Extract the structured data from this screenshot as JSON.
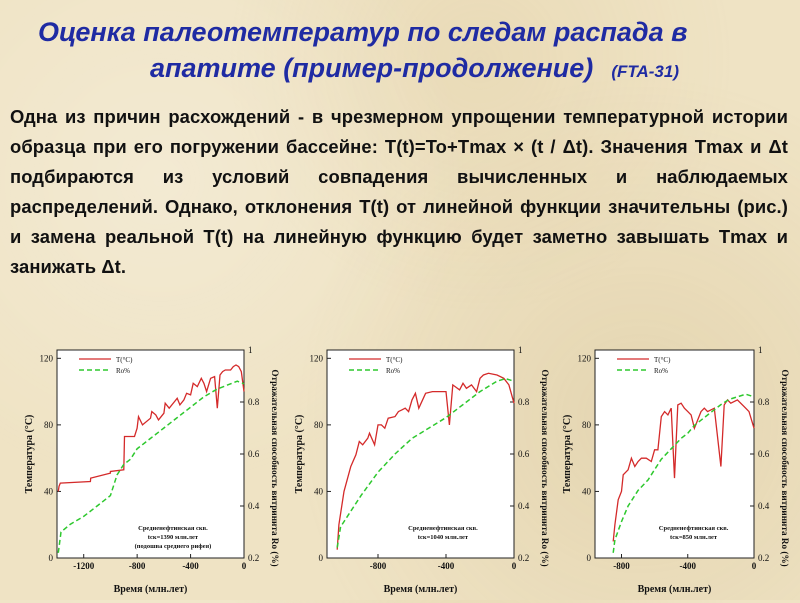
{
  "title": {
    "line1": "Оценка палеотемператур по следам распада в",
    "line2": "апатите (пример-продолжение)",
    "code": "(FTA-31)"
  },
  "paragraph": "Одна из причин расхождений - в чрезмерном упрощении температурной истории образца при его погружении бассейне: T(t)=To+Tmax × (t / Δt). Значения Tmax  и Δt подбираются из условий совпадения вычисленных и наблюдаемых распределений. Однако, отклонения T(t) от линейной функции значительны (рис.) и замена реальной T(t) на линейную функцию будет заметно завышать Tmax и занижать Δt.",
  "colors": {
    "title": "#1f2ba3",
    "temperature": "#d42a2a",
    "ro": "#2ec82e"
  },
  "chart_data": [
    {
      "type": "line",
      "xlabel": "Время (млн.лет)",
      "ylabel_left": "Температура (°C)",
      "ylabel_right": "Отражательная способность витринита Ro (%)",
      "xlim": [
        -1400,
        0
      ],
      "ylim_left": [
        0,
        125
      ],
      "ylim_right": [
        0.2,
        1.0
      ],
      "x_ticks": [
        "-1200",
        "-800",
        "-400",
        "0"
      ],
      "y_ticks_left": [
        "0",
        "40",
        "80",
        "120"
      ],
      "y_ticks_right": [
        "0.2",
        "0.4",
        "0.6",
        "0.8",
        "1"
      ],
      "legend": [
        "T(°C)",
        "Ro%"
      ],
      "annotation": [
        "Средненефтинская скв.",
        "tск=1390 млн.лет",
        "(подошва среднего рифея)"
      ],
      "series": [
        {
          "name": "T(°C)",
          "axis": "left",
          "x": [
            -1390,
            -1385,
            -1375,
            -1150,
            -1148,
            -1000,
            -1000,
            -900,
            -895,
            -820,
            -800,
            -790,
            -760,
            -700,
            -690,
            -660,
            -640,
            -600,
            -590,
            -560,
            -520,
            -500,
            -480,
            -450,
            -430,
            -400,
            -380,
            -350,
            -320,
            -300,
            -280,
            -250,
            -220,
            -200,
            -180,
            -160,
            -140,
            -100,
            -80,
            -60,
            -40,
            -20,
            0
          ],
          "y": [
            40,
            43,
            45,
            46,
            48,
            51,
            52,
            53,
            73,
            73,
            78,
            85,
            80,
            84,
            88,
            86,
            83,
            87,
            93,
            90,
            94,
            96,
            92,
            95,
            99,
            98,
            105,
            103,
            108,
            105,
            100,
            108,
            109,
            90,
            110,
            112,
            113,
            113,
            115,
            116,
            115,
            112,
            100
          ]
        },
        {
          "name": "Ro%",
          "axis": "right",
          "x": [
            -1390,
            -1370,
            -1300,
            -1200,
            -1100,
            -1000,
            -950,
            -900,
            -850,
            -800,
            -700,
            -600,
            -500,
            -400,
            -300,
            -200,
            -150,
            -100,
            -50,
            0
          ],
          "y": [
            0.22,
            0.3,
            0.33,
            0.36,
            0.4,
            0.44,
            0.52,
            0.56,
            0.58,
            0.62,
            0.66,
            0.7,
            0.74,
            0.78,
            0.82,
            0.85,
            0.86,
            0.87,
            0.88,
            0.87
          ]
        }
      ]
    },
    {
      "type": "line",
      "xlabel": "Время (млн.лет)",
      "ylabel_left": "Температура (°C)",
      "ylabel_right": "Отражательная способность витринита Ro (%)",
      "xlim": [
        -1100,
        0
      ],
      "ylim_left": [
        0,
        125
      ],
      "ylim_right": [
        0.2,
        1.0
      ],
      "x_ticks": [
        "-800",
        "-400",
        "0"
      ],
      "y_ticks_left": [
        "0",
        "40",
        "80",
        "120"
      ],
      "y_ticks_right": [
        "0.2",
        "0.4",
        "0.6",
        "0.8",
        "1"
      ],
      "legend": [
        "T(°C)",
        "Ro%"
      ],
      "annotation": [
        "Средненефтинская скв.",
        "tск=1040 млн.лет"
      ],
      "series": [
        {
          "name": "T(°C)",
          "axis": "left",
          "x": [
            -1040,
            -1030,
            -1000,
            -960,
            -930,
            -910,
            -890,
            -860,
            -850,
            -820,
            -800,
            -780,
            -760,
            -740,
            -700,
            -680,
            -660,
            -640,
            -620,
            -600,
            -580,
            -560,
            -520,
            -480,
            -400,
            -380,
            -360,
            -320,
            -300,
            -280,
            -250,
            -220,
            -200,
            -180,
            -150,
            -100,
            -60,
            -30,
            0
          ],
          "y": [
            5,
            20,
            40,
            55,
            62,
            70,
            68,
            72,
            75,
            68,
            80,
            80,
            78,
            84,
            85,
            88,
            89,
            90,
            88,
            95,
            99,
            90,
            99,
            100,
            100,
            80,
            104,
            101,
            105,
            102,
            104,
            100,
            108,
            110,
            111,
            110,
            108,
            104,
            93
          ]
        },
        {
          "name": "Ro%",
          "axis": "right",
          "x": [
            -1040,
            -1020,
            -960,
            -900,
            -800,
            -700,
            -600,
            -500,
            -400,
            -300,
            -200,
            -150,
            -100,
            -50,
            0
          ],
          "y": [
            0.24,
            0.32,
            0.38,
            0.44,
            0.53,
            0.6,
            0.66,
            0.7,
            0.74,
            0.79,
            0.84,
            0.86,
            0.88,
            0.89,
            0.88
          ]
        }
      ]
    },
    {
      "type": "line",
      "xlabel": "Время (млн.лет)",
      "ylabel_left": "Температура (°C)",
      "ylabel_right": "Отражательная способность витринита Ro (%)",
      "xlim": [
        -960,
        0
      ],
      "ylim_left": [
        0,
        125
      ],
      "ylim_right": [
        0.2,
        1.0
      ],
      "x_ticks": [
        "-800",
        "-400",
        "0"
      ],
      "y_ticks_left": [
        "0",
        "40",
        "80",
        "120"
      ],
      "y_ticks_right": [
        "0.2",
        "0.4",
        "0.6",
        "0.8",
        "1"
      ],
      "legend": [
        "T(°C)",
        "Ro%"
      ],
      "annotation": [
        "Средненефтинская скв.",
        "tск=850 млн.лет"
      ],
      "series": [
        {
          "name": "T(°C)",
          "axis": "left",
          "x": [
            -850,
            -840,
            -820,
            -800,
            -790,
            -760,
            -740,
            -720,
            -700,
            -680,
            -650,
            -620,
            -600,
            -580,
            -560,
            -540,
            -520,
            -500,
            -480,
            -460,
            -440,
            -420,
            -400,
            -380,
            -360,
            -320,
            -300,
            -280,
            -240,
            -200,
            -180,
            -160,
            -140,
            -100,
            -60,
            -30,
            0
          ],
          "y": [
            10,
            20,
            35,
            40,
            50,
            53,
            60,
            55,
            58,
            60,
            60,
            58,
            65,
            65,
            85,
            88,
            86,
            90,
            48,
            92,
            93,
            90,
            88,
            86,
            78,
            88,
            90,
            88,
            90,
            55,
            92,
            95,
            93,
            95,
            91,
            88,
            78
          ]
        },
        {
          "name": "Ro%",
          "axis": "right",
          "x": [
            -850,
            -840,
            -800,
            -760,
            -700,
            -640,
            -600,
            -560,
            -500,
            -440,
            -400,
            -360,
            -300,
            -260,
            -200,
            -150,
            -100,
            -50,
            0
          ],
          "y": [
            0.22,
            0.27,
            0.34,
            0.4,
            0.46,
            0.5,
            0.54,
            0.58,
            0.62,
            0.66,
            0.68,
            0.71,
            0.74,
            0.76,
            0.79,
            0.81,
            0.82,
            0.83,
            0.82
          ]
        }
      ]
    }
  ]
}
